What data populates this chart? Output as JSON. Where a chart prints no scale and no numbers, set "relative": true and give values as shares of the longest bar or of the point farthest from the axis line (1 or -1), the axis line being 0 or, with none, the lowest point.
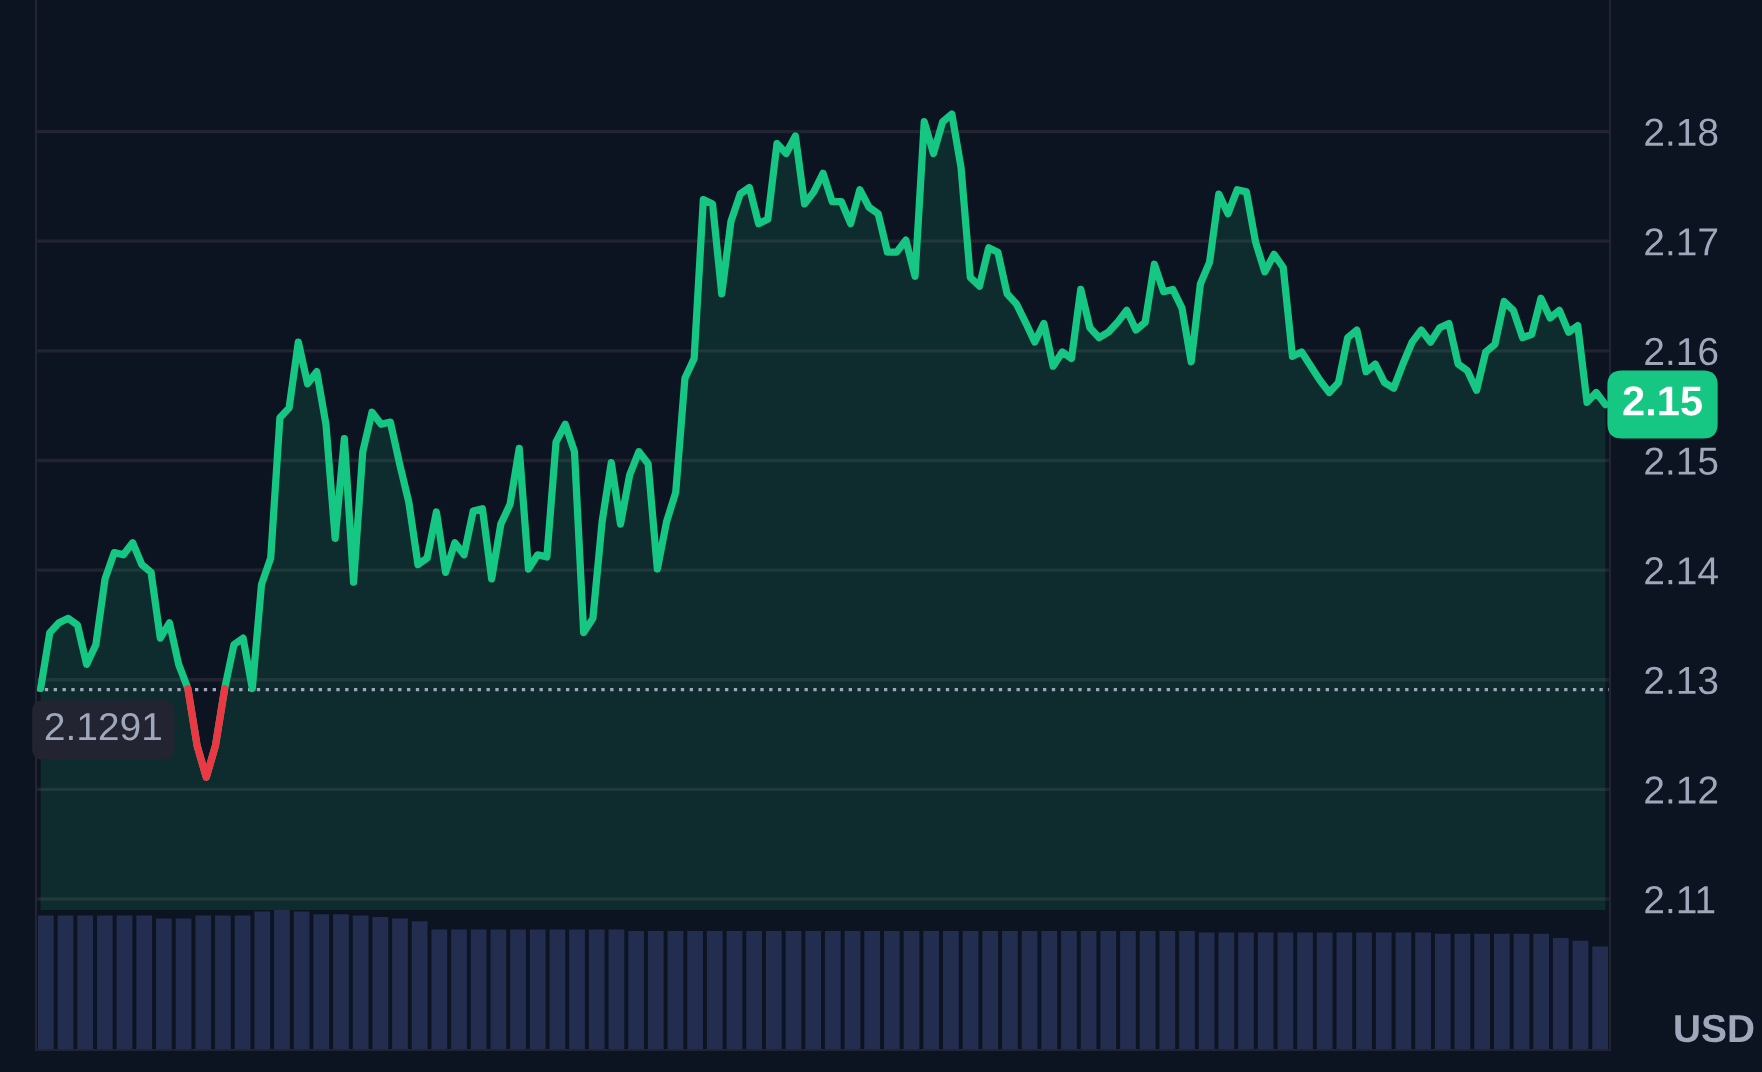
{
  "chart_data": [
    {
      "type": "area",
      "ylabel": "USD",
      "categories": [
        null,
        null,
        null,
        null,
        null,
        null,
        null,
        null,
        null,
        null,
        null,
        null,
        null,
        null,
        null,
        null,
        null,
        null,
        null,
        null,
        null,
        null,
        null,
        null,
        null,
        null,
        null,
        null,
        null,
        null,
        null,
        null,
        null,
        null,
        null,
        null,
        null,
        null,
        null,
        null,
        null,
        null,
        null,
        null,
        null,
        null,
        null,
        null,
        null,
        null,
        null,
        null,
        null,
        null,
        null,
        null,
        null,
        null,
        null,
        null,
        null,
        null,
        null,
        null,
        null,
        null,
        null,
        null,
        null,
        null,
        null,
        null,
        null,
        null,
        null,
        null,
        null,
        null,
        null,
        null,
        null,
        null,
        null,
        null,
        null,
        null,
        null,
        null,
        null,
        null,
        null,
        null,
        null,
        null,
        null,
        null,
        null,
        null,
        null,
        null,
        null,
        null,
        null,
        null,
        null,
        null,
        null,
        null,
        null,
        null,
        null,
        null,
        null,
        null,
        null,
        null,
        null,
        null,
        null,
        null,
        null,
        null,
        null,
        null,
        null,
        null,
        null,
        null,
        null,
        null,
        null,
        null,
        null,
        null,
        null,
        null,
        null,
        null,
        null,
        null,
        null,
        null,
        null,
        null,
        null,
        null,
        null,
        null,
        null,
        null,
        null,
        null,
        null,
        null,
        null,
        null,
        null,
        null,
        null,
        null,
        null,
        null,
        null,
        null,
        null,
        null,
        null,
        null,
        null,
        null,
        null
      ],
      "series": [
        {
          "color": "#16c784",
          "values": [
            2.1292,
            2.1343,
            2.1352,
            2.1356,
            2.135,
            2.1314,
            2.1332,
            2.1392,
            2.1416,
            2.1414,
            2.1425,
            2.1405,
            2.1398,
            2.1338,
            2.1352,
            2.1314,
            2.1292,
            2.124,
            2.1211,
            2.124,
            2.1292,
            2.1332,
            2.1338,
            2.1292,
            2.1387,
            2.1411,
            2.1539,
            2.1548,
            2.1608,
            2.157,
            2.1581,
            2.1533,
            2.1429,
            2.152,
            2.1389,
            2.1508,
            2.1544,
            2.1533,
            2.1535,
            2.1497,
            2.1462,
            2.1405,
            2.1411,
            2.1453,
            2.1398,
            2.1425,
            2.1414,
            2.1454,
            2.1456,
            2.1392,
            2.1442,
            2.146,
            2.1511,
            2.1401,
            2.1414,
            2.1412,
            2.1517,
            2.1533,
            2.1508,
            2.1343,
            2.1356,
            2.1444,
            2.1498,
            2.1442,
            2.1487,
            2.1508,
            2.1497,
            2.1401,
            2.1444,
            2.1471,
            2.1575,
            2.1593,
            2.1738,
            2.1734,
            2.1652,
            2.1718,
            2.1743,
            2.1749,
            2.1716,
            2.172,
            2.1789,
            2.178,
            2.1796,
            2.1734,
            2.1745,
            2.1762,
            2.1736,
            2.1736,
            2.1716,
            2.1747,
            2.1731,
            2.1725,
            2.169,
            2.169,
            2.1701,
            2.1668,
            2.1809,
            2.178,
            2.1809,
            2.1816,
            2.1767,
            2.1667,
            2.1659,
            2.1694,
            2.169,
            2.1652,
            2.1643,
            2.1626,
            2.1608,
            2.1625,
            2.1586,
            2.1599,
            2.1593,
            2.1656,
            2.1621,
            2.1612,
            2.1617,
            2.1626,
            2.1637,
            2.1619,
            2.1626,
            2.1679,
            2.1654,
            2.1656,
            2.1639,
            2.159,
            2.1661,
            2.1681,
            2.1743,
            2.1725,
            2.1747,
            2.1745,
            2.1699,
            2.1672,
            2.1688,
            2.1676,
            2.1595,
            2.1599,
            2.1586,
            2.1573,
            2.1562,
            2.1571,
            2.1612,
            2.1619,
            2.1581,
            2.1588,
            2.1571,
            2.1566,
            2.1588,
            2.1608,
            2.1619,
            2.1608,
            2.1621,
            2.1625,
            2.1588,
            2.1582,
            2.1564,
            2.1599,
            2.1606,
            2.1645,
            2.1637,
            2.1612,
            2.1615,
            2.1648,
            2.163,
            2.1637,
            2.1617,
            2.1623,
            2.1553,
            2.1562,
            2.1551
          ]
        },
        {
          "type": "line",
          "color": "#ea3943",
          "values": [
            null,
            null,
            null,
            null,
            null,
            null,
            null,
            null,
            null,
            null,
            null,
            null,
            null,
            null,
            null,
            null,
            2.1292,
            2.124,
            2.1211,
            2.124,
            2.1292,
            null,
            null,
            null,
            null,
            null,
            null,
            null,
            null,
            null,
            null,
            null,
            null,
            null,
            null,
            null,
            null,
            null,
            null,
            null,
            null,
            null,
            null,
            null,
            null,
            null,
            null,
            null,
            null,
            null,
            null,
            null,
            null,
            null,
            null,
            null,
            null,
            null,
            null,
            null,
            null,
            null,
            null,
            null,
            null,
            null,
            null,
            null,
            null,
            null,
            null,
            null,
            null,
            null,
            null,
            null,
            null,
            null,
            null,
            null,
            null,
            null,
            null,
            null,
            null,
            null,
            null,
            null,
            null,
            null,
            null,
            null,
            null,
            null,
            null,
            null,
            null,
            null,
            null,
            null,
            null,
            null,
            null,
            null,
            null,
            null,
            null,
            null,
            null,
            null,
            null,
            null,
            null,
            null,
            null,
            null,
            null,
            null,
            null,
            null,
            null,
            null,
            null,
            null,
            null,
            null,
            null,
            null,
            null,
            null,
            null,
            null,
            null,
            null,
            null,
            null,
            null,
            null,
            null,
            null,
            null,
            null,
            null,
            null,
            null,
            null,
            null,
            null,
            null,
            null,
            null,
            null,
            null,
            null,
            null,
            null,
            null,
            null,
            null,
            null,
            null,
            null,
            null,
            null,
            null,
            null,
            null,
            null,
            null,
            null,
            null
          ]
        }
      ],
      "ylim": [
        2.109,
        2.192
      ],
      "yticks": [
        2.11,
        2.12,
        2.13,
        2.14,
        2.15,
        2.16,
        2.17,
        2.18
      ],
      "tick_labels": "y",
      "grid": "y",
      "legend": false,
      "marker": "none",
      "line_style": "solid",
      "ref_lines": [
        {
          "axis": "y",
          "value": 2.1291,
          "label": "2.1291",
          "color": "#a1a7bb",
          "line_style": "dotted"
        }
      ],
      "annotations": [
        "2.15"
      ]
    },
    {
      "type": "bar",
      "relative": true,
      "tick_labels": false,
      "grid": false,
      "legend": false,
      "color": "#222d50",
      "categories": [
        null,
        null,
        null,
        null,
        null,
        null,
        null,
        null,
        null,
        null,
        null,
        null,
        null,
        null,
        null,
        null,
        null,
        null,
        null,
        null,
        null,
        null,
        null,
        null,
        null,
        null,
        null,
        null,
        null,
        null,
        null,
        null,
        null,
        null,
        null,
        null,
        null,
        null,
        null,
        null,
        null,
        null,
        null,
        null,
        null,
        null,
        null,
        null,
        null,
        null,
        null,
        null,
        null,
        null,
        null,
        null,
        null,
        null,
        null,
        null,
        null,
        null,
        null,
        null,
        null,
        null,
        null,
        null,
        null,
        null,
        null,
        null,
        null,
        null,
        null,
        null,
        null,
        null,
        null,
        null
      ],
      "values": [
        0.96,
        0.96,
        0.96,
        0.96,
        0.96,
        0.96,
        0.94,
        0.94,
        0.96,
        0.96,
        0.96,
        0.99,
        1.0,
        0.99,
        0.97,
        0.97,
        0.96,
        0.95,
        0.94,
        0.92,
        0.86,
        0.86,
        0.86,
        0.86,
        0.86,
        0.86,
        0.86,
        0.86,
        0.86,
        0.86,
        0.85,
        0.85,
        0.85,
        0.85,
        0.85,
        0.85,
        0.85,
        0.85,
        0.85,
        0.85,
        0.85,
        0.85,
        0.85,
        0.85,
        0.85,
        0.85,
        0.85,
        0.85,
        0.85,
        0.85,
        0.85,
        0.85,
        0.85,
        0.85,
        0.85,
        0.85,
        0.85,
        0.85,
        0.85,
        0.84,
        0.84,
        0.84,
        0.84,
        0.84,
        0.84,
        0.84,
        0.84,
        0.84,
        0.84,
        0.84,
        0.84,
        0.83,
        0.83,
        0.83,
        0.83,
        0.83,
        0.83,
        0.8,
        0.78,
        0.74
      ]
    }
  ]
}
